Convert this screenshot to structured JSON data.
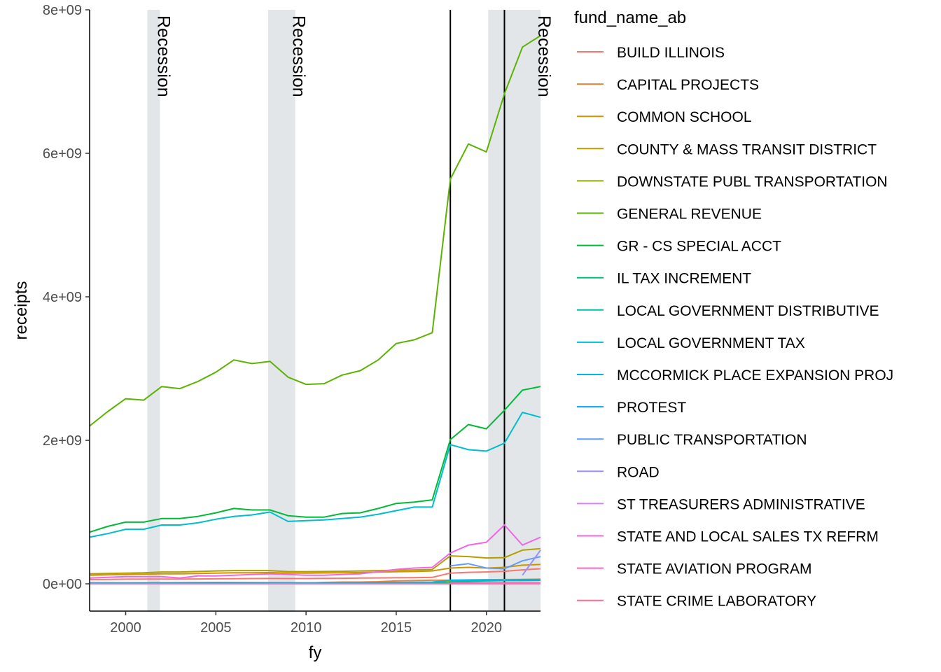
{
  "chart_data": {
    "type": "line",
    "xlabel": "fy",
    "ylabel": "receipts",
    "xlim": [
      1998,
      2023
    ],
    "ylim": [
      -380000000,
      8000000000
    ],
    "x_ticks": [
      2000,
      2005,
      2010,
      2015,
      2020
    ],
    "x_tick_labels": [
      "2000",
      "2005",
      "2010",
      "2015",
      "2020"
    ],
    "y_ticks": [
      0,
      2000000000,
      4000000000,
      6000000000,
      8000000000
    ],
    "y_tick_labels": [
      "0e+00",
      "2e+09",
      "4e+09",
      "6e+09",
      "8e+09"
    ],
    "grid": false,
    "legend": {
      "title": "fund_name_ab",
      "position": "right"
    },
    "recessions": [
      {
        "start": 2001.2,
        "end": 2001.9,
        "label": "Recession"
      },
      {
        "start": 2007.9,
        "end": 2009.4,
        "label": "Recession"
      },
      {
        "start": 2020.1,
        "end": 2023.0,
        "label": "Recession"
      }
    ],
    "recession_color": "#e2e6e9",
    "vlines": [
      2018,
      2021
    ],
    "series": [
      {
        "name": "BUILD ILLINOIS",
        "color": "#F8766D",
        "x": [
          1998,
          1999,
          2000,
          2001,
          2002,
          2003,
          2004,
          2005,
          2006,
          2007,
          2008,
          2009,
          2010,
          2011,
          2012,
          2013,
          2014,
          2015,
          2016,
          2017,
          2018,
          2019,
          2020,
          2021,
          2022,
          2023
        ],
        "y": [
          60000000,
          62000000,
          65000000,
          66000000,
          66000000,
          66000000,
          68000000,
          70000000,
          72000000,
          74000000,
          75000000,
          74000000,
          74000000,
          76000000,
          78000000,
          80000000,
          82000000,
          84000000,
          86000000,
          90000000,
          150000000,
          160000000,
          165000000,
          175000000,
          195000000,
          210000000
        ]
      },
      {
        "name": "CAPITAL PROJECTS",
        "color": "#EB8335",
        "x": [
          2010,
          2011,
          2012,
          2013,
          2014,
          2015,
          2016,
          2017,
          2018,
          2019,
          2020,
          2021,
          2022,
          2023
        ],
        "y": [
          10000000,
          20000000,
          25000000,
          25000000,
          30000000,
          40000000,
          45000000,
          50000000,
          50000000,
          55000000,
          58000000,
          60000000,
          62000000,
          65000000
        ]
      },
      {
        "name": "COMMON SCHOOL",
        "color": "#D09400",
        "x": [
          1998,
          1999,
          2000,
          2001,
          2002,
          2003,
          2004,
          2005,
          2006,
          2007,
          2008,
          2009,
          2010,
          2011,
          2012,
          2013,
          2014,
          2015,
          2016,
          2017,
          2018,
          2019,
          2020,
          2021,
          2022,
          2023
        ],
        "y": [
          120000000,
          125000000,
          130000000,
          135000000,
          140000000,
          140000000,
          145000000,
          150000000,
          155000000,
          155000000,
          158000000,
          150000000,
          150000000,
          152000000,
          155000000,
          158000000,
          162000000,
          168000000,
          172000000,
          180000000,
          220000000,
          230000000,
          220000000,
          230000000,
          260000000,
          270000000
        ]
      },
      {
        "name": "COUNTY & MASS TRANSIT DISTRICT",
        "color": "#B3A000",
        "x": [
          1998,
          1999,
          2000,
          2001,
          2002,
          2003,
          2004,
          2005,
          2006,
          2007,
          2008,
          2009,
          2010,
          2011,
          2012,
          2013,
          2014,
          2015,
          2016,
          2017,
          2018,
          2019,
          2020,
          2021,
          2022,
          2023
        ],
        "y": [
          140000000,
          145000000,
          150000000,
          155000000,
          165000000,
          165000000,
          172000000,
          180000000,
          185000000,
          185000000,
          185000000,
          170000000,
          170000000,
          172000000,
          175000000,
          180000000,
          185000000,
          190000000,
          195000000,
          200000000,
          390000000,
          380000000,
          360000000,
          365000000,
          470000000,
          490000000
        ]
      },
      {
        "name": "DOWNSTATE PUBL TRANSPORTATION",
        "color": "#8EAB00",
        "x": [
          2017,
          2018,
          2019,
          2020,
          2021,
          2022,
          2023
        ],
        "y": [
          20000000,
          40000000,
          45000000,
          45000000,
          50000000,
          55000000,
          60000000
        ]
      },
      {
        "name": "GENERAL REVENUE",
        "color": "#5BB300",
        "x": [
          1998,
          1999,
          2000,
          2001,
          2002,
          2003,
          2004,
          2005,
          2006,
          2007,
          2008,
          2009,
          2010,
          2011,
          2012,
          2013,
          2014,
          2015,
          2016,
          2017,
          2018,
          2019,
          2020,
          2021,
          2022,
          2023
        ],
        "y": [
          2200000000,
          2400000000,
          2580000000,
          2560000000,
          2750000000,
          2720000000,
          2820000000,
          2950000000,
          3120000000,
          3070000000,
          3100000000,
          2880000000,
          2780000000,
          2790000000,
          2910000000,
          2970000000,
          3120000000,
          3350000000,
          3400000000,
          3500000000,
          5640000000,
          6130000000,
          6020000000,
          6830000000,
          7480000000,
          7640000000
        ]
      },
      {
        "name": "GR - CS SPECIAL ACCT",
        "color": "#00BA38",
        "x": [
          1998,
          1999,
          2000,
          2001,
          2002,
          2003,
          2004,
          2005,
          2006,
          2007,
          2008,
          2009,
          2010,
          2011,
          2012,
          2013,
          2014,
          2015,
          2016,
          2017,
          2018,
          2019,
          2020,
          2021,
          2022,
          2023
        ],
        "y": [
          720000000,
          800000000,
          860000000,
          860000000,
          910000000,
          910000000,
          940000000,
          990000000,
          1050000000,
          1030000000,
          1030000000,
          950000000,
          930000000,
          930000000,
          980000000,
          990000000,
          1050000000,
          1120000000,
          1140000000,
          1170000000,
          2010000000,
          2220000000,
          2160000000,
          2420000000,
          2700000000,
          2750000000
        ]
      },
      {
        "name": "IL TAX INCREMENT",
        "color": "#00BF74",
        "x": [
          1998,
          2003,
          2008,
          2013,
          2018,
          2023
        ],
        "y": [
          15000000,
          15000000,
          15000000,
          15000000,
          15000000,
          15000000
        ]
      },
      {
        "name": "LOCAL GOVERNMENT DISTRIBUTIVE",
        "color": "#00C0A4",
        "x": [
          2018,
          2019,
          2020,
          2021,
          2022,
          2023
        ],
        "y": [
          30000000,
          35000000,
          40000000,
          45000000,
          45000000,
          48000000
        ]
      },
      {
        "name": "LOCAL GOVERNMENT TAX",
        "color": "#00BECC",
        "x": [
          1998,
          1999,
          2000,
          2001,
          2002,
          2003,
          2004,
          2005,
          2006,
          2007,
          2008,
          2009,
          2010,
          2011,
          2012,
          2013,
          2014,
          2015,
          2016,
          2017,
          2018,
          2019,
          2020,
          2021,
          2022,
          2023
        ],
        "y": [
          650000000,
          700000000,
          760000000,
          760000000,
          820000000,
          820000000,
          850000000,
          900000000,
          940000000,
          960000000,
          1000000000,
          870000000,
          880000000,
          890000000,
          910000000,
          930000000,
          970000000,
          1020000000,
          1070000000,
          1070000000,
          1940000000,
          1870000000,
          1850000000,
          1960000000,
          2390000000,
          2320000000
        ]
      },
      {
        "name": "MCCORMICK PLACE EXPANSION PROJ",
        "color": "#00B6EB",
        "x": [
          1998,
          2000,
          2005,
          2010,
          2015,
          2017,
          2018,
          2020,
          2021,
          2022,
          2023
        ],
        "y": [
          10000000,
          15000000,
          20000000,
          15000000,
          20000000,
          25000000,
          50000000,
          55000000,
          50000000,
          60000000,
          60000000
        ]
      },
      {
        "name": "PROTEST",
        "color": "#00A5FF",
        "x": [
          1998,
          2003,
          2008,
          2013,
          2018,
          2023
        ],
        "y": [
          2000000,
          2000000,
          2000000,
          2000000,
          2000000,
          2000000
        ]
      },
      {
        "name": "PUBLIC TRANSPORTATION",
        "color": "#619CFF",
        "x": [
          2018,
          2019,
          2020,
          2021,
          2022,
          2023
        ],
        "y": [
          250000000,
          280000000,
          220000000,
          210000000,
          320000000,
          380000000
        ]
      },
      {
        "name": "ROAD",
        "color": "#9D8EFF",
        "x": [
          2022,
          2023
        ],
        "y": [
          120000000,
          470000000
        ]
      },
      {
        "name": "ST TREASURERS ADMINISTRATIVE",
        "color": "#D67FFF",
        "x": [
          2018,
          2019,
          2020,
          2021,
          2022,
          2023
        ],
        "y": [
          5000000,
          6000000,
          6000000,
          6000000,
          7000000,
          7000000
        ]
      },
      {
        "name": "STATE AND LOCAL SALES TX REFRM",
        "color": "#F166E8",
        "x": [
          1998,
          1999,
          2000,
          2001,
          2002,
          2003,
          2004,
          2005,
          2006,
          2007,
          2008,
          2009,
          2010,
          2011,
          2012,
          2013,
          2014,
          2015,
          2016,
          2017,
          2018,
          2019,
          2020,
          2021,
          2022,
          2023
        ],
        "y": [
          80000000,
          90000000,
          100000000,
          100000000,
          100000000,
          80000000,
          110000000,
          110000000,
          120000000,
          130000000,
          140000000,
          130000000,
          120000000,
          120000000,
          130000000,
          140000000,
          170000000,
          200000000,
          220000000,
          230000000,
          430000000,
          540000000,
          580000000,
          820000000,
          540000000,
          650000000
        ]
      },
      {
        "name": "STATE AVIATION PROGRAM",
        "color": "#FF62BC",
        "x": [
          2018,
          2019,
          2020,
          2021,
          2022,
          2023
        ],
        "y": [
          10000000,
          12000000,
          12000000,
          12000000,
          14000000,
          15000000
        ]
      },
      {
        "name": "STATE CRIME LABORATORY",
        "color": "#FF6C91",
        "x": [
          1998,
          2003,
          2008,
          2013,
          2018,
          2023
        ],
        "y": [
          3000000,
          3000000,
          3000000,
          3000000,
          3000000,
          3000000
        ]
      }
    ]
  }
}
